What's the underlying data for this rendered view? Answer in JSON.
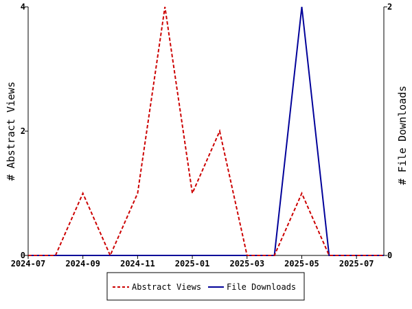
{
  "chart_data": {
    "type": "line",
    "title": "",
    "xlabel": "",
    "ylabel": "# Abstract Views",
    "y2label": "# File Downloads",
    "x": [
      "2024-07",
      "2024-08",
      "2024-09",
      "2024-10",
      "2024-11",
      "2024-12",
      "2025-01",
      "2025-02",
      "2025-03",
      "2025-04",
      "2025-05",
      "2025-06",
      "2025-07",
      "2025-08"
    ],
    "x_tick_labels": [
      "2024-07",
      "2024-09",
      "2024-11",
      "2025-01",
      "2025-03",
      "2025-05",
      "2025-07"
    ],
    "ylim": [
      0,
      4
    ],
    "y_ticks": [
      "0",
      "2",
      "4"
    ],
    "y2lim": [
      0,
      2
    ],
    "y2_ticks": [
      "0",
      "2"
    ],
    "grid": false,
    "legend_position": "bottom",
    "series": [
      {
        "name": "Abstract Views",
        "axis": "left",
        "color": "#cc0000",
        "dash": "dashed",
        "values": [
          0,
          0,
          1,
          0,
          1,
          4,
          1,
          2,
          0,
          0,
          1,
          0,
          0,
          0
        ]
      },
      {
        "name": "File Downloads",
        "axis": "right",
        "color": "#000099",
        "dash": "solid",
        "values": [
          0,
          0,
          0,
          0,
          0,
          0,
          0,
          0,
          0,
          0,
          2,
          0,
          0,
          0
        ]
      }
    ]
  }
}
